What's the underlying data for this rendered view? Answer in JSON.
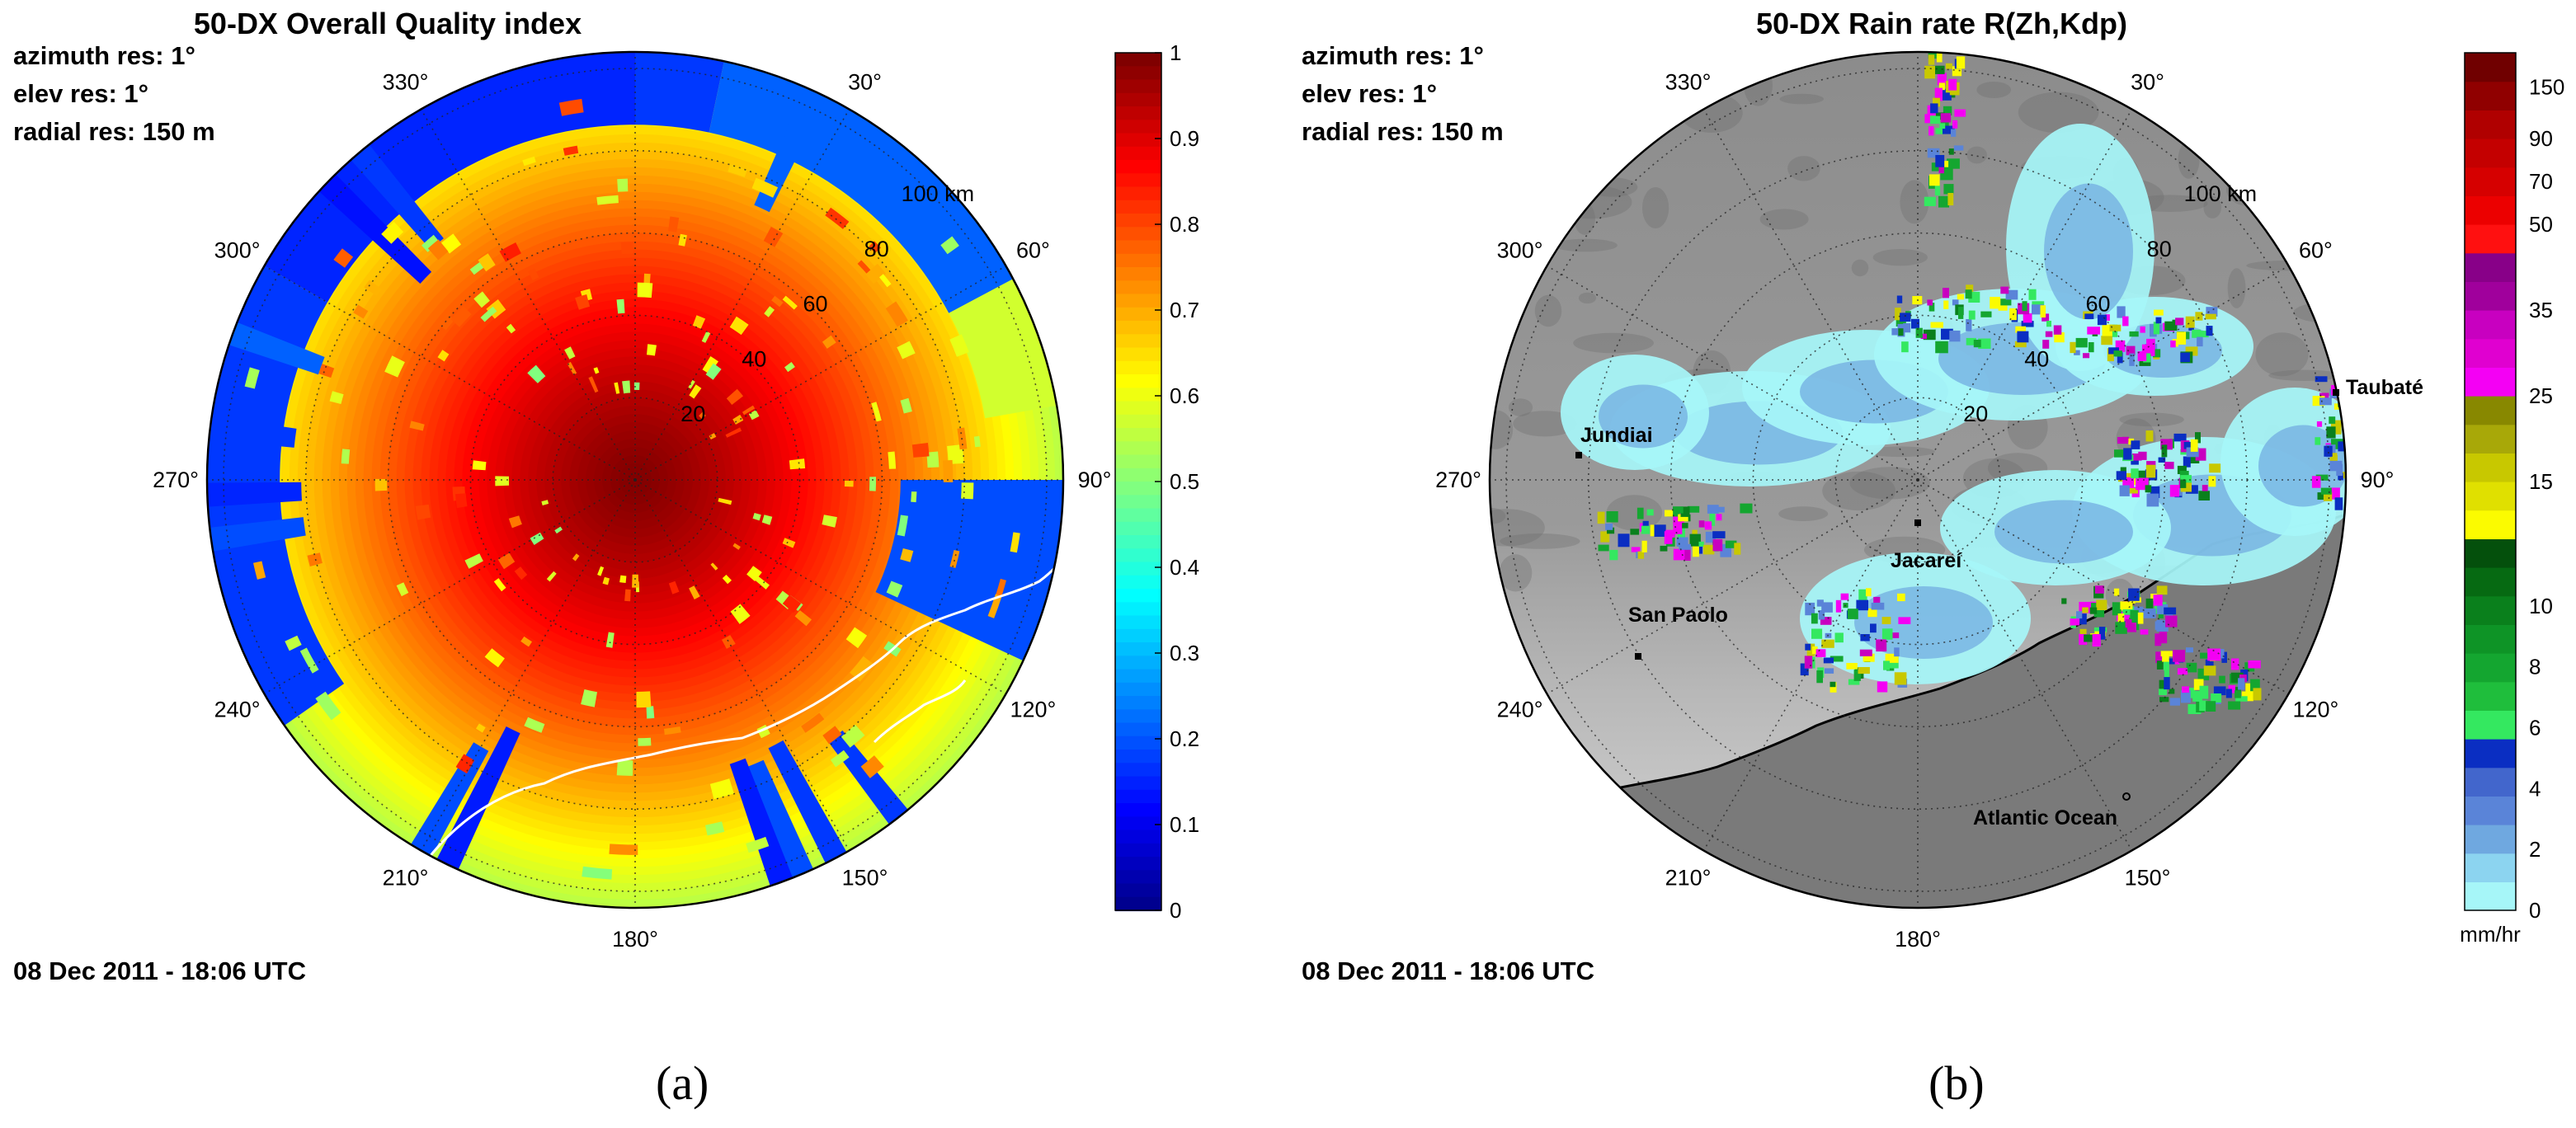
{
  "figure": {
    "date": "08 Dec 2011 - 18:06 UTC"
  },
  "chart_data": [
    {
      "type": "heatmap",
      "panel_label": "(a)",
      "title": "50-DX Overall Quality index",
      "meta": [
        "azimuth res: 1°",
        "elev res: 1°",
        "radial res: 150 m"
      ],
      "date": "08 Dec 2011 - 18:06 UTC",
      "projection": "polar",
      "angle_labels": [
        "30°",
        "60°",
        "90°",
        "120°",
        "150°",
        "180°",
        "210°",
        "240°",
        "270°",
        "300°",
        "330°"
      ],
      "range_labels": [
        "20",
        "40",
        "60",
        "80",
        "100 km"
      ],
      "range_values_km": [
        20,
        40,
        60,
        80,
        100
      ],
      "colorbar": {
        "ticks": [
          "0",
          "0.1",
          "0.2",
          "0.3",
          "0.4",
          "0.5",
          "0.6",
          "0.7",
          "0.8",
          "0.9",
          "1"
        ],
        "range": [
          0,
          1
        ],
        "colormap": "jet"
      },
      "field_description": "Quality index decreases with range from about 1 at center to about 0.6 near 100 km; low values (0.1–0.3) beyond ~80 km in the north sector and in narrow radial spokes",
      "overlay": "coastline"
    },
    {
      "type": "heatmap",
      "panel_label": "(b)",
      "title": "50-DX Rain rate R(Zh,Kdp)",
      "meta": [
        "azimuth res: 1°",
        "elev res: 1°",
        "radial res: 150 m"
      ],
      "date": "08 Dec 2011 - 18:06 UTC",
      "projection": "polar",
      "angle_labels": [
        "30°",
        "60°",
        "90°",
        "120°",
        "150°",
        "180°",
        "210°",
        "240°",
        "270°",
        "300°",
        "330°"
      ],
      "range_labels": [
        "20",
        "40",
        "60",
        "80",
        "100 km"
      ],
      "range_values_km": [
        20,
        40,
        60,
        80,
        100
      ],
      "colorbar": {
        "ticks": [
          "0",
          "2",
          "4",
          "6",
          "8",
          "10",
          "15",
          "25",
          "35",
          "50",
          "70",
          "90",
          "150"
        ],
        "unit": "mm/hr",
        "colors": [
          "#a6f6f8",
          "#8cd4f0",
          "#6fa8e0",
          "#5a84d8",
          "#4266cc",
          "#0a2ec2",
          "#34e860",
          "#1fbe3c",
          "#14a630",
          "#0e9426",
          "#0a801c",
          "#066a12",
          "#04500c",
          "#fbfb00",
          "#e0e000",
          "#c8c800",
          "#a8a808",
          "#888800",
          "#f400f4",
          "#e000d0",
          "#c800c0",
          "#a0009c",
          "#880088",
          "#ff1010",
          "#ec0000",
          "#d60000",
          "#c40000",
          "#b00000",
          "#900000",
          "#700000"
        ]
      },
      "cities": [
        {
          "name": "Jundiai"
        },
        {
          "name": "Taubaté"
        },
        {
          "name": "Jacareí"
        },
        {
          "name": "San Paolo"
        },
        {
          "name": "Atlantic Ocean"
        }
      ],
      "background": "grayscale terrain"
    }
  ]
}
